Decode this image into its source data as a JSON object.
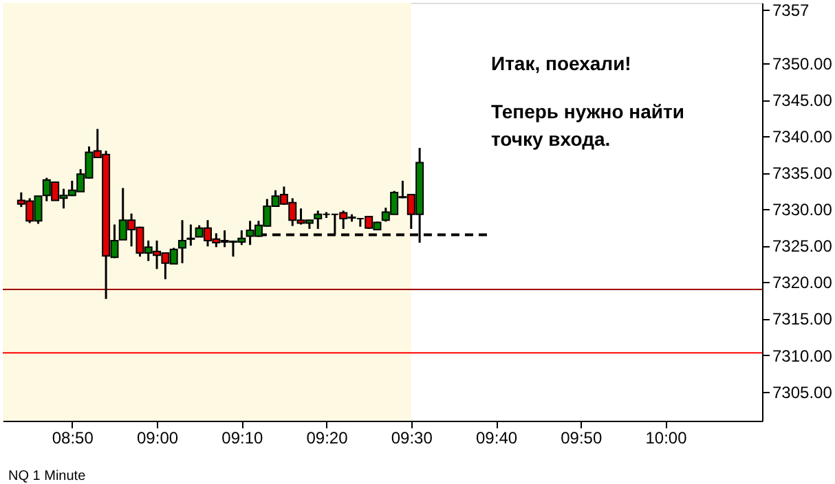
{
  "chart_data": {
    "type": "candlestick",
    "x": [
      8.7333,
      8.75,
      8.7667,
      8.7833,
      8.8,
      8.8167,
      8.8333,
      8.85,
      8.8667,
      8.8833,
      8.9,
      8.9167,
      8.9333,
      8.95,
      8.9667,
      8.9833,
      9.0,
      9.0167,
      9.0333,
      9.05,
      9.0667,
      9.0833,
      9.1,
      9.1167,
      9.1333,
      9.15,
      9.1667,
      9.1833,
      9.2,
      9.2167,
      9.2333,
      9.25,
      9.2667,
      9.2833,
      9.3,
      9.3167,
      9.3333,
      9.35,
      9.3667,
      9.3833,
      9.4,
      9.4167,
      9.4333,
      9.45,
      9.4667,
      9.4833,
      9.5,
      9.5167
    ],
    "ohlc": [
      [
        7331.2,
        7332.3,
        7330.3,
        7330.7
      ],
      [
        7331.1,
        7331.5,
        7328.1,
        7328.4
      ],
      [
        7328.4,
        7331.8,
        7328.0,
        7331.8
      ],
      [
        7331.9,
        7334.3,
        7331.1,
        7334.0
      ],
      [
        7333.7,
        7333.7,
        7331.2,
        7331.2
      ],
      [
        7331.5,
        7332.8,
        7330.1,
        7331.9
      ],
      [
        7331.9,
        7333.9,
        7331.8,
        7332.6
      ],
      [
        7332.4,
        7335.5,
        7332.4,
        7334.8
      ],
      [
        7334.3,
        7338.6,
        7334.2,
        7337.8
      ],
      [
        7338.0,
        7341.0,
        7337.0,
        7337.1
      ],
      [
        7337.5,
        7338.0,
        7317.7,
        7323.6
      ],
      [
        7323.4,
        7327.9,
        7323.3,
        7325.7
      ],
      [
        7325.8,
        7332.9,
        7325.8,
        7328.5
      ],
      [
        7328.5,
        7329.4,
        7324.9,
        7327.2
      ],
      [
        7327.5,
        7327.6,
        7323.5,
        7324.0
      ],
      [
        7324.0,
        7325.7,
        7322.9,
        7324.8
      ],
      [
        7324.2,
        7325.7,
        7321.8,
        7323.7
      ],
      [
        7324.0,
        7324.0,
        7320.4,
        7322.6
      ],
      [
        7322.5,
        7324.7,
        7322.5,
        7324.5
      ],
      [
        7324.7,
        7328.5,
        7322.6,
        7325.7
      ],
      [
        7325.9,
        7327.9,
        7325.0,
        7326.0
      ],
      [
        7326.2,
        7327.8,
        7326.2,
        7327.4
      ],
      [
        7327.4,
        7328.5,
        7324.9,
        7325.7
      ],
      [
        7325.9,
        7326.7,
        7324.8,
        7325.4
      ],
      [
        7325.7,
        7327.1,
        7324.8,
        7325.5
      ],
      [
        7325.6,
        7325.7,
        7323.5,
        7325.5
      ],
      [
        7325.5,
        7327.1,
        7325.1,
        7326.0
      ],
      [
        7326.3,
        7328.4,
        7325.1,
        7327.1
      ],
      [
        7326.3,
        7328.4,
        7326.2,
        7327.8
      ],
      [
        7327.7,
        7331.4,
        7327.6,
        7330.4
      ],
      [
        7330.4,
        7332.6,
        7330.4,
        7331.8
      ],
      [
        7332.0,
        7333.1,
        7330.6,
        7330.7
      ],
      [
        7330.9,
        7331.5,
        7327.7,
        7328.5
      ],
      [
        7328.5,
        7330.1,
        7327.9,
        7328.1
      ],
      [
        7328.1,
        7328.5,
        7327.3,
        7328.5
      ],
      [
        7328.7,
        7329.8,
        7327.3,
        7329.3
      ],
      [
        7329.3,
        7329.6,
        7328.8,
        7329.3
      ],
      [
        7329.3,
        7329.3,
        7326.5,
        7329.3
      ],
      [
        7329.5,
        7329.8,
        7327.3,
        7328.7
      ],
      [
        7328.9,
        7329.3,
        7328.3,
        7328.8
      ],
      [
        7328.7,
        7328.7,
        7327.6,
        7328.7
      ],
      [
        7329.0,
        7329.0,
        7327.3,
        7327.4
      ],
      [
        7327.2,
        7328.3,
        7327.1,
        7328.2
      ],
      [
        7328.5,
        7330.2,
        7328.3,
        7329.6
      ],
      [
        7329.3,
        7332.5,
        7329.3,
        7332.3
      ],
      [
        7331.7,
        7333.9,
        7331.5,
        7331.6
      ],
      [
        7332.0,
        7332.0,
        7327.3,
        7329.3
      ],
      [
        7329.3,
        7338.4,
        7325.4,
        7336.4
      ]
    ],
    "colors": [
      "#e00000",
      "#e00000",
      "#008000",
      "#008000",
      "#e00000",
      "#008000",
      "#008000",
      "#008000",
      "#008000",
      "#e00000",
      "#e00000",
      "#008000",
      "#008000",
      "#e00000",
      "#e00000",
      "#008000",
      "#e00000",
      "#e00000",
      "#008000",
      "#008000",
      "#008000",
      "#008000",
      "#e00000",
      "#e00000",
      "#e00000",
      "#e00000",
      "#008000",
      "#008000",
      "#008000",
      "#008000",
      "#008000",
      "#e00000",
      "#e00000",
      "#e00000",
      "#008000",
      "#008000",
      "#000000",
      "#000000",
      "#e00000",
      "#e00000",
      "#000000",
      "#e00000",
      "#008000",
      "#008000",
      "#008000",
      "#e00000",
      "#e00000",
      "#008000"
    ],
    "series": [
      {
        "type": "line",
        "x": [
          9.2,
          9.65
        ],
        "values": [
          7326.5,
          7326.5
        ],
        "color": "#000000",
        "line_style": "dashed"
      }
    ],
    "ref_lines": [
      {
        "axis": "y",
        "value": 7319.0,
        "color": "#a00000"
      },
      {
        "axis": "y",
        "value": 7310.3,
        "color": "#ff0000"
      }
    ],
    "bands": [
      {
        "axis": "x",
        "from": 8.697,
        "to": 9.5,
        "color": "#fef9e3"
      }
    ],
    "xlim": [
      8.697,
      10.19
    ],
    "ylim": [
      7301,
      7358.3
    ],
    "xticks": [
      {
        "value": 8.8333,
        "label": "08:50"
      },
      {
        "value": 9.0,
        "label": "09:00"
      },
      {
        "value": 9.1667,
        "label": "09:10"
      },
      {
        "value": 9.3333,
        "label": "09:20"
      },
      {
        "value": 9.5,
        "label": "09:30"
      },
      {
        "value": 9.6667,
        "label": "09:40"
      },
      {
        "value": 9.8333,
        "label": "09:50"
      },
      {
        "value": 10.0,
        "label": "10:00"
      }
    ],
    "yticks": [
      {
        "value": 7305,
        "label": "7305.00"
      },
      {
        "value": 7310,
        "label": "7310.00"
      },
      {
        "value": 7315,
        "label": "7315.00"
      },
      {
        "value": 7320,
        "label": "7320.00"
      },
      {
        "value": 7325,
        "label": "7325.00"
      },
      {
        "value": 7330,
        "label": "7330.00"
      },
      {
        "value": 7335,
        "label": "7335.00"
      },
      {
        "value": 7340,
        "label": "7340.00"
      },
      {
        "value": 7345,
        "label": "7345.00"
      },
      {
        "value": 7350,
        "label": "7350.00"
      },
      {
        "value": 7357.4,
        "label": "7357"
      }
    ],
    "annotations": [
      "Итак, поехали!",
      "Теперь нужно найти\nточку входа.",
      "NQ 1 Minute"
    ],
    "grid": false
  }
}
